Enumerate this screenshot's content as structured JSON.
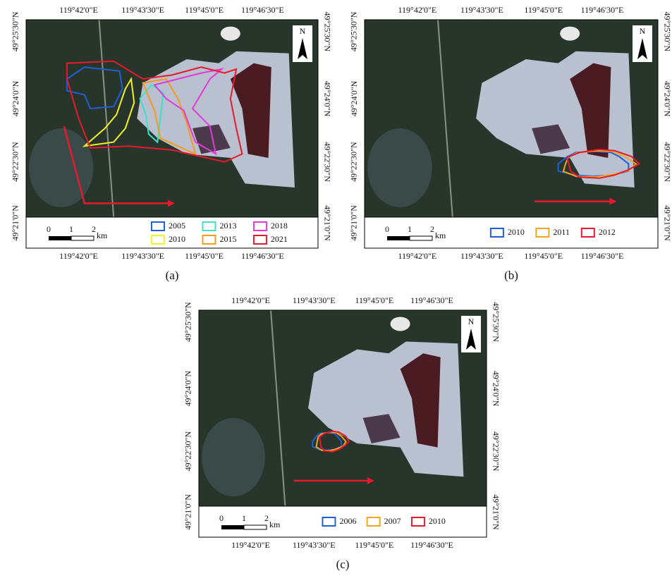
{
  "panels": [
    {
      "label": "(a)",
      "top_ticks": [
        "119°42'0\"E",
        "119°43'30\"E",
        "119°45'0\"E",
        "119°46'30\"E"
      ],
      "bottom_ticks": [
        "119°42'0\"E",
        "119°43'30\"E",
        "119°45'0\"E",
        "119°46'30\"E"
      ],
      "left_ticks": [
        "49°25'30\"N",
        "49°24'0\"N",
        "49°22'30\"N",
        "49°21'0\"N"
      ],
      "right_ticks": [
        "49°25'30\"N",
        "49°24'0\"N",
        "49°22'30\"N",
        "49°21'0\"N"
      ],
      "scale": [
        "0",
        "1",
        "2"
      ],
      "unit": "km",
      "north": "N",
      "legend": [
        {
          "name": "2005",
          "color": "#1f5fd6"
        },
        {
          "name": "2010",
          "color": "#f2f22a"
        },
        {
          "name": "2013",
          "color": "#3ee0c8"
        },
        {
          "name": "2015",
          "color": "#f59a1e"
        },
        {
          "name": "2018",
          "color": "#e23ad6"
        },
        {
          "name": "2021",
          "color": "#e8192c"
        }
      ]
    },
    {
      "label": "(b)",
      "top_ticks": [
        "119°42'0\"E",
        "119°43'30\"E",
        "119°45'0\"E",
        "119°46'30\"E"
      ],
      "bottom_ticks": [
        "119°42'0\"E",
        "119°43'30\"E",
        "119°45'0\"E",
        "119°46'30\"E"
      ],
      "left_ticks": [
        "49°25'30\"N",
        "49°24'0\"N",
        "49°22'30\"N",
        "49°21'0\"N"
      ],
      "right_ticks": [
        "49°25'30\"N",
        "49°24'0\"N",
        "49°22'30\"N",
        "49°21'0\"N"
      ],
      "scale": [
        "0",
        "1",
        "2"
      ],
      "unit": "km",
      "north": "N",
      "legend": [
        {
          "name": "2010",
          "color": "#1f5fd6"
        },
        {
          "name": "2011",
          "color": "#f2a51e"
        },
        {
          "name": "2012",
          "color": "#e8192c"
        }
      ]
    },
    {
      "label": "(c)",
      "top_ticks": [
        "119°42'0\"E",
        "119°43'30\"E",
        "119°45'0\"E",
        "119°46'30\"E"
      ],
      "bottom_ticks": [
        "119°42'0\"E",
        "119°43'30\"E",
        "119°45'0\"E",
        "119°46'30\"E"
      ],
      "left_ticks": [
        "49°25'30\"N",
        "49°24'0\"N",
        "49°22'30\"N",
        "49°21'0\"N"
      ],
      "right_ticks": [
        "49°25'30\"N",
        "49°24'0\"N",
        "49°22'30\"N",
        "49°21'0\"N"
      ],
      "scale": [
        "0",
        "1",
        "2"
      ],
      "unit": "km",
      "north": "N",
      "legend": [
        {
          "name": "2006",
          "color": "#1f5fd6"
        },
        {
          "name": "2007",
          "color": "#f2a51e"
        },
        {
          "name": "2010",
          "color": "#e8192c"
        }
      ]
    }
  ]
}
